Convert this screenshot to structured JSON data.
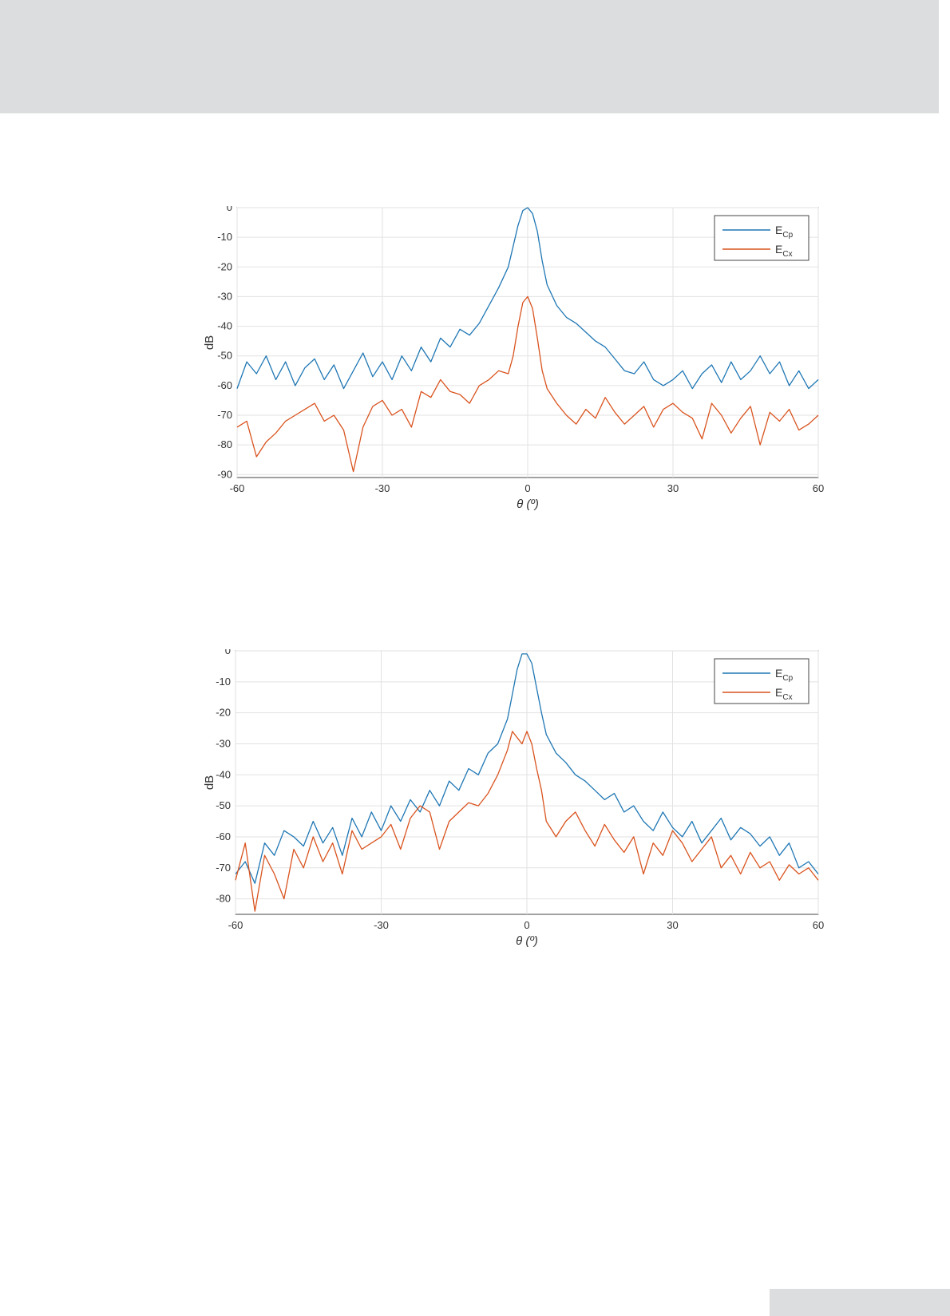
{
  "colors": {
    "ecp": "#1f77b4",
    "ecx": "#d9531e",
    "grid": "#e2e2e2",
    "axes": "#444444",
    "background": "#ffffff"
  },
  "chart_data": [
    {
      "type": "line",
      "title": "",
      "xlabel": "θ (º)",
      "ylabel": "dB",
      "xlim": [
        -60,
        60
      ],
      "ylim": [
        -91,
        0
      ],
      "xticks": [
        -60,
        -30,
        0,
        30,
        60
      ],
      "xtick_labels": [
        "-60",
        "-30",
        "0",
        "30",
        "60"
      ],
      "yticks": [
        0,
        -10,
        -20,
        -30,
        -40,
        -50,
        -60,
        -70,
        -80,
        -90
      ],
      "ytick_labels": [
        "0",
        "-10",
        "-20",
        "-30",
        "-40",
        "-50",
        "-60",
        "-70",
        "-80",
        "-90"
      ],
      "grid": true,
      "legend": {
        "position": "top-right",
        "entries": [
          {
            "main": "E",
            "sub": "Cp"
          },
          {
            "main": "E",
            "sub": "Cx"
          }
        ]
      },
      "series": [
        {
          "name": "ECp",
          "x": [
            -60,
            -58,
            -56,
            -54,
            -52,
            -50,
            -48,
            -46,
            -44,
            -42,
            -40,
            -38,
            -36,
            -34,
            -32,
            -30,
            -28,
            -26,
            -24,
            -22,
            -20,
            -18,
            -16,
            -14,
            -12,
            -10,
            -8,
            -6,
            -4,
            -3,
            -2,
            -1,
            0,
            1,
            2,
            3,
            4,
            6,
            8,
            10,
            12,
            14,
            16,
            18,
            20,
            22,
            24,
            26,
            28,
            30,
            32,
            34,
            36,
            38,
            40,
            42,
            44,
            46,
            48,
            50,
            52,
            54,
            56,
            58,
            60
          ],
          "y": [
            -61,
            -52,
            -56,
            -50,
            -58,
            -52,
            -60,
            -54,
            -51,
            -58,
            -53,
            -61,
            -55,
            -49,
            -57,
            -52,
            -58,
            -50,
            -55,
            -47,
            -52,
            -44,
            -47,
            -41,
            -43,
            -39,
            -33,
            -27,
            -20,
            -13,
            -6,
            -1,
            0,
            -2,
            -8,
            -18,
            -26,
            -33,
            -37,
            -39,
            -42,
            -45,
            -47,
            -51,
            -55,
            -56,
            -52,
            -58,
            -60,
            -58,
            -55,
            -61,
            -56,
            -53,
            -59,
            -52,
            -58,
            -55,
            -50,
            -56,
            -52,
            -60,
            -55,
            -61,
            -58
          ]
        },
        {
          "name": "ECx",
          "x": [
            -60,
            -58,
            -56,
            -54,
            -52,
            -50,
            -48,
            -46,
            -44,
            -42,
            -40,
            -38,
            -36,
            -34,
            -32,
            -30,
            -28,
            -26,
            -24,
            -22,
            -20,
            -18,
            -16,
            -14,
            -12,
            -10,
            -8,
            -6,
            -4,
            -3,
            -2,
            -1,
            0,
            1,
            2,
            3,
            4,
            6,
            8,
            10,
            12,
            14,
            16,
            18,
            20,
            22,
            24,
            26,
            28,
            30,
            32,
            34,
            36,
            38,
            40,
            42,
            44,
            46,
            48,
            50,
            52,
            54,
            56,
            58,
            60
          ],
          "y": [
            -74,
            -72,
            -84,
            -79,
            -76,
            -72,
            -70,
            -68,
            -66,
            -72,
            -70,
            -75,
            -89,
            -74,
            -67,
            -65,
            -70,
            -68,
            -74,
            -62,
            -64,
            -58,
            -62,
            -63,
            -66,
            -60,
            -58,
            -55,
            -56,
            -50,
            -40,
            -32,
            -30,
            -34,
            -44,
            -55,
            -61,
            -66,
            -70,
            -73,
            -68,
            -71,
            -64,
            -69,
            -73,
            -70,
            -67,
            -74,
            -68,
            -66,
            -69,
            -71,
            -78,
            -66,
            -70,
            -76,
            -71,
            -67,
            -80,
            -69,
            -72,
            -68,
            -75,
            -73,
            -70
          ]
        }
      ]
    },
    {
      "type": "line",
      "title": "",
      "xlabel": "θ (º)",
      "ylabel": "dB",
      "xlim": [
        -60,
        60
      ],
      "ylim": [
        -85,
        0
      ],
      "xticks": [
        -60,
        -30,
        0,
        30,
        60
      ],
      "xtick_labels": [
        "-60",
        "-30",
        "0",
        "30",
        "60"
      ],
      "yticks": [
        0,
        -10,
        -20,
        -30,
        -40,
        -50,
        -60,
        -70,
        -80
      ],
      "ytick_labels": [
        "0",
        "-10",
        "-20",
        "-30",
        "-40",
        "-50",
        "-60",
        "-70",
        "-80"
      ],
      "grid": true,
      "legend": {
        "position": "top-right",
        "entries": [
          {
            "main": "E",
            "sub": "Cp"
          },
          {
            "main": "E",
            "sub": "Cx"
          }
        ]
      },
      "series": [
        {
          "name": "ECp",
          "x": [
            -60,
            -58,
            -56,
            -54,
            -52,
            -50,
            -48,
            -46,
            -44,
            -42,
            -40,
            -38,
            -36,
            -34,
            -32,
            -30,
            -28,
            -26,
            -24,
            -22,
            -20,
            -18,
            -16,
            -14,
            -12,
            -10,
            -8,
            -6,
            -4,
            -3,
            -2,
            -1,
            0,
            1,
            2,
            3,
            4,
            6,
            8,
            10,
            12,
            14,
            16,
            18,
            20,
            22,
            24,
            26,
            28,
            30,
            32,
            34,
            36,
            38,
            40,
            42,
            44,
            46,
            48,
            50,
            52,
            54,
            56,
            58,
            60
          ],
          "y": [
            -72,
            -68,
            -75,
            -62,
            -66,
            -58,
            -60,
            -63,
            -55,
            -62,
            -57,
            -66,
            -54,
            -60,
            -52,
            -58,
            -50,
            -55,
            -48,
            -52,
            -45,
            -50,
            -42,
            -45,
            -38,
            -40,
            -33,
            -30,
            -22,
            -14,
            -6,
            -1,
            -1,
            -4,
            -12,
            -20,
            -27,
            -33,
            -36,
            -40,
            -42,
            -45,
            -48,
            -46,
            -52,
            -50,
            -55,
            -58,
            -52,
            -57,
            -60,
            -55,
            -62,
            -58,
            -54,
            -61,
            -57,
            -59,
            -63,
            -60,
            -66,
            -62,
            -70,
            -68,
            -72
          ]
        },
        {
          "name": "ECx",
          "x": [
            -60,
            -58,
            -56,
            -54,
            -52,
            -50,
            -48,
            -46,
            -44,
            -42,
            -40,
            -38,
            -36,
            -34,
            -32,
            -30,
            -28,
            -26,
            -24,
            -22,
            -20,
            -18,
            -16,
            -14,
            -12,
            -10,
            -8,
            -6,
            -4,
            -3,
            -2,
            -1,
            0,
            1,
            2,
            3,
            4,
            6,
            8,
            10,
            12,
            14,
            16,
            18,
            20,
            22,
            24,
            26,
            28,
            30,
            32,
            34,
            36,
            38,
            40,
            42,
            44,
            46,
            48,
            50,
            52,
            54,
            56,
            58,
            60
          ],
          "y": [
            -74,
            -62,
            -84,
            -66,
            -72,
            -80,
            -64,
            -70,
            -60,
            -68,
            -62,
            -72,
            -58,
            -64,
            -62,
            -60,
            -56,
            -64,
            -54,
            -50,
            -52,
            -64,
            -55,
            -52,
            -49,
            -50,
            -46,
            -40,
            -32,
            -26,
            -28,
            -30,
            -26,
            -30,
            -38,
            -45,
            -55,
            -60,
            -55,
            -52,
            -58,
            -63,
            -56,
            -61,
            -65,
            -60,
            -72,
            -62,
            -66,
            -58,
            -62,
            -68,
            -64,
            -60,
            -70,
            -66,
            -72,
            -65,
            -70,
            -68,
            -74,
            -69,
            -72,
            -70,
            -74
          ]
        }
      ]
    }
  ]
}
